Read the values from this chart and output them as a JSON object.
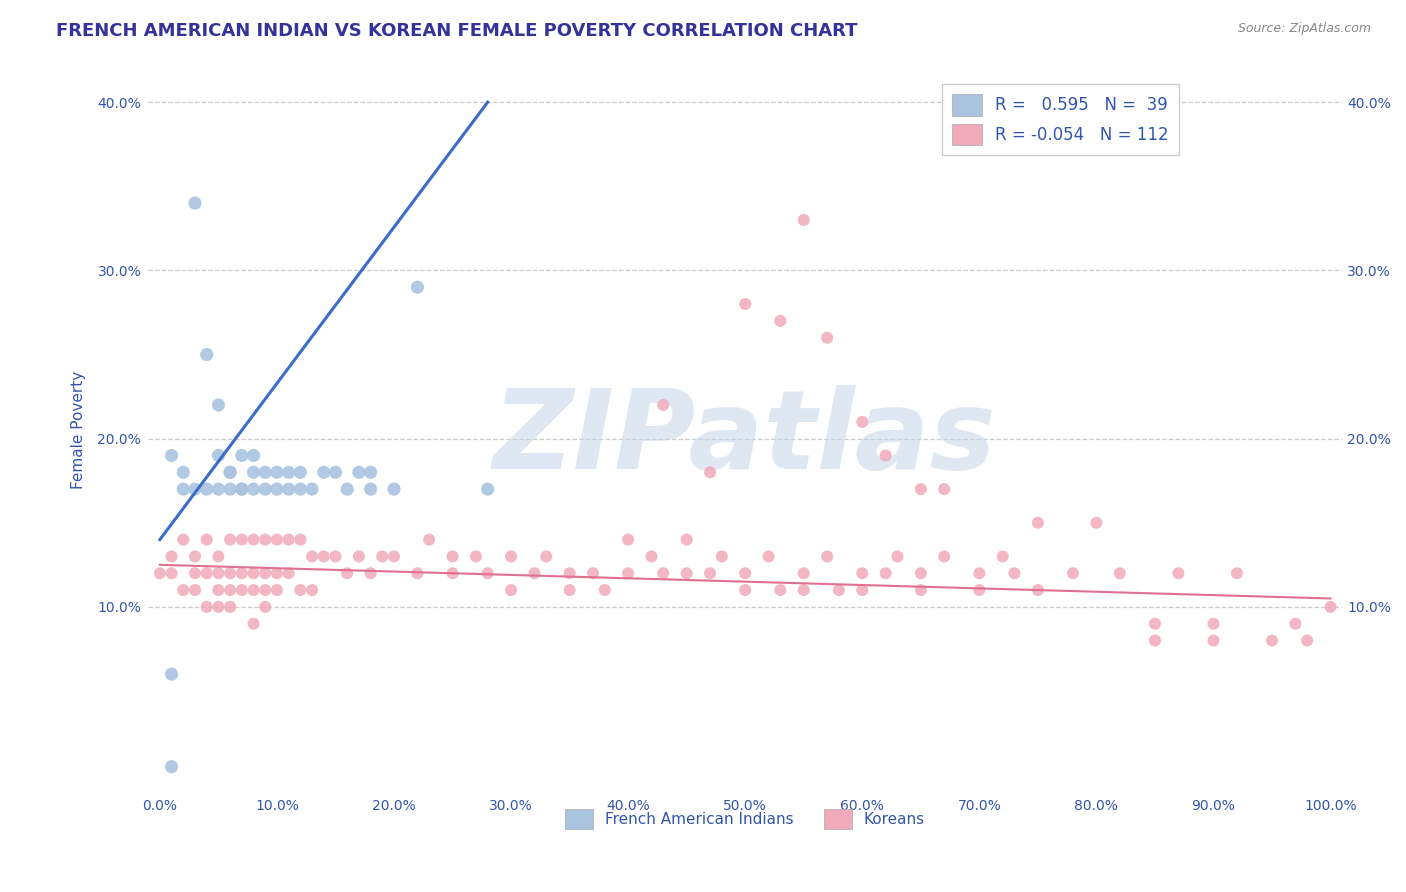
{
  "title": "FRENCH AMERICAN INDIAN VS KOREAN FEMALE POVERTY CORRELATION CHART",
  "source": "Source: ZipAtlas.com",
  "ylabel": "Female Poverty",
  "xlim": [
    -1,
    101
  ],
  "ylim": [
    -1,
    42
  ],
  "xticks": [
    0,
    10,
    20,
    30,
    40,
    50,
    60,
    70,
    80,
    90,
    100
  ],
  "yticks": [
    0,
    10,
    20,
    30,
    40
  ],
  "ytick_labels": [
    "",
    "10.0%",
    "20.0%",
    "30.0%",
    "40.0%"
  ],
  "xtick_labels": [
    "0.0%",
    "10.0%",
    "20.0%",
    "30.0%",
    "40.0%",
    "50.0%",
    "60.0%",
    "70.0%",
    "80.0%",
    "90.0%",
    "100.0%"
  ],
  "blue_color": "#aac4e0",
  "blue_line_color": "#3a6cc8",
  "pink_color": "#f0aabb",
  "pink_line_color": "#e07090",
  "legend_blue_r": "0.595",
  "legend_blue_n": "39",
  "legend_pink_r": "-0.054",
  "legend_pink_n": "112",
  "watermark": "ZIPatlas",
  "watermark_color": "#c5d5e8",
  "title_color": "#333399",
  "axis_color": "#3355aa",
  "tick_color": "#3355aa",
  "grid_color": "#cccccc",
  "blue_x": [
    1,
    2,
    3,
    4,
    5,
    5,
    6,
    6,
    7,
    7,
    8,
    8,
    8,
    9,
    9,
    10,
    10,
    11,
    11,
    12,
    12,
    13,
    14,
    15,
    16,
    17,
    18,
    18,
    20,
    22,
    28,
    1,
    2,
    3,
    4,
    5,
    6,
    7,
    1
  ],
  "blue_y": [
    0.5,
    17,
    34,
    25,
    19,
    22,
    18,
    17,
    19,
    17,
    18,
    17,
    19,
    17,
    18,
    18,
    17,
    18,
    17,
    17,
    18,
    17,
    18,
    18,
    17,
    18,
    18,
    17,
    17,
    29,
    17,
    19,
    18,
    17,
    17,
    17,
    18,
    17,
    6
  ],
  "pink_x": [
    0,
    1,
    1,
    2,
    2,
    3,
    3,
    3,
    4,
    4,
    4,
    5,
    5,
    5,
    5,
    6,
    6,
    6,
    6,
    7,
    7,
    7,
    8,
    8,
    8,
    8,
    9,
    9,
    9,
    9,
    10,
    10,
    10,
    11,
    11,
    12,
    12,
    13,
    13,
    14,
    15,
    16,
    17,
    18,
    19,
    20,
    22,
    23,
    25,
    25,
    27,
    28,
    30,
    30,
    32,
    33,
    35,
    35,
    37,
    38,
    40,
    40,
    42,
    43,
    45,
    45,
    47,
    48,
    50,
    50,
    52,
    53,
    55,
    55,
    57,
    58,
    60,
    60,
    62,
    63,
    65,
    65,
    67,
    70,
    70,
    72,
    73,
    75,
    75,
    78,
    80,
    82,
    85,
    85,
    87,
    90,
    90,
    92,
    95,
    97,
    98,
    100,
    43,
    47,
    50,
    53,
    55,
    57,
    60,
    62,
    65,
    67
  ],
  "pink_y": [
    12,
    13,
    12,
    14,
    11,
    13,
    12,
    11,
    14,
    12,
    10,
    13,
    12,
    11,
    10,
    14,
    12,
    11,
    10,
    14,
    12,
    11,
    14,
    12,
    11,
    9,
    14,
    12,
    11,
    10,
    14,
    12,
    11,
    14,
    12,
    14,
    11,
    13,
    11,
    13,
    13,
    12,
    13,
    12,
    13,
    13,
    12,
    14,
    13,
    12,
    13,
    12,
    13,
    11,
    12,
    13,
    12,
    11,
    12,
    11,
    14,
    12,
    13,
    12,
    14,
    12,
    12,
    13,
    12,
    11,
    13,
    11,
    12,
    11,
    13,
    11,
    12,
    11,
    12,
    13,
    12,
    11,
    13,
    12,
    11,
    13,
    12,
    15,
    11,
    12,
    15,
    12,
    8,
    9,
    12,
    9,
    8,
    12,
    8,
    9,
    8,
    10,
    22,
    18,
    28,
    27,
    33,
    26,
    21,
    19,
    17,
    17
  ],
  "blue_line_x": [
    0,
    28
  ],
  "blue_line_y": [
    14.0,
    40.0
  ],
  "pink_line_x": [
    0,
    100
  ],
  "pink_line_y": [
    12.5,
    10.5
  ]
}
